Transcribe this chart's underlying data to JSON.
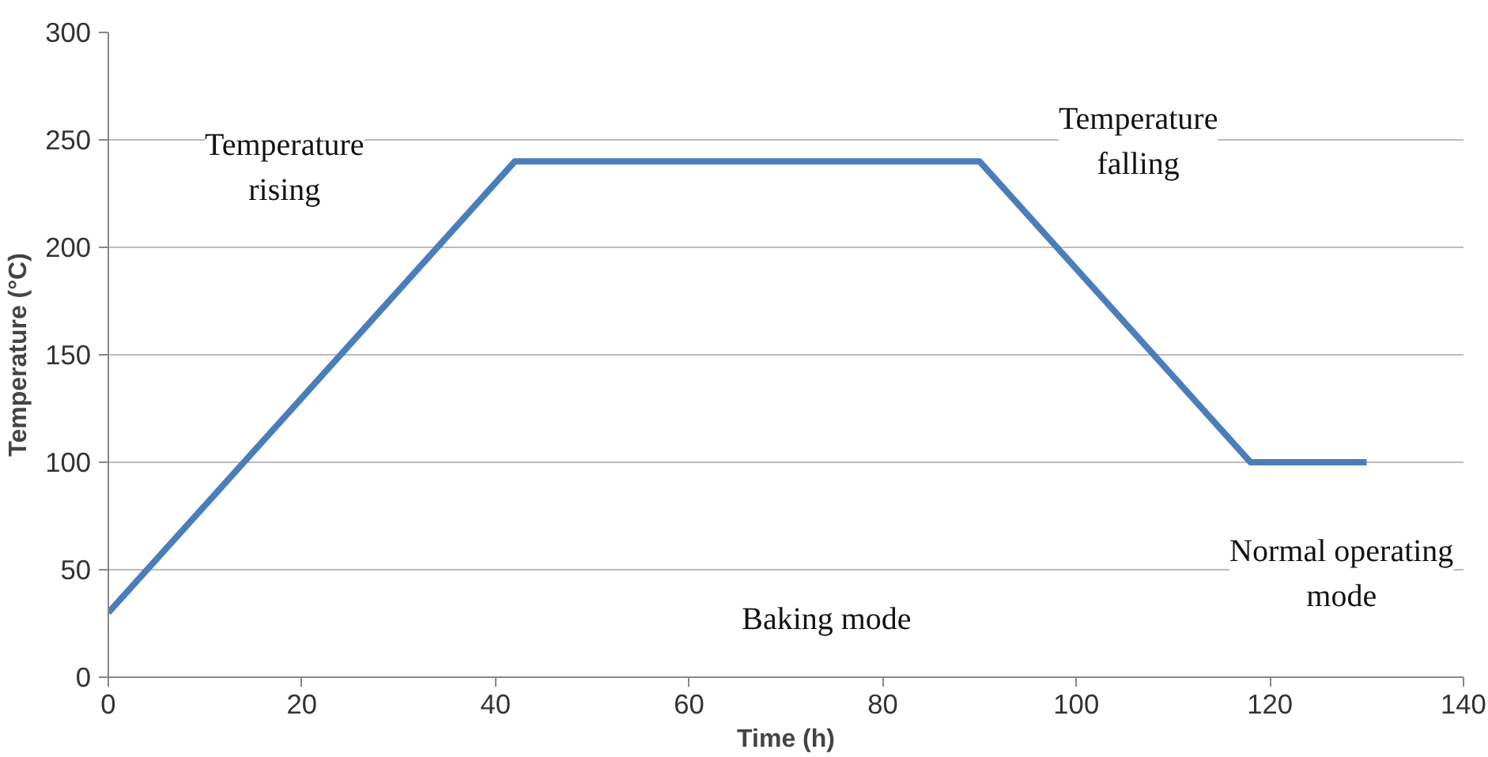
{
  "chart_data": {
    "type": "line",
    "xlabel": "Time (h)",
    "ylabel": "Temperature (°C)",
    "x": [
      0,
      42,
      90,
      118,
      130
    ],
    "series": [
      {
        "color": "#4a7ebb",
        "values": [
          30,
          240,
          240,
          100,
          100
        ]
      }
    ],
    "xlim": [
      0,
      140
    ],
    "ylim": [
      0,
      300
    ],
    "xticks": [
      0,
      20,
      40,
      60,
      80,
      100,
      120,
      140
    ],
    "yticks": [
      0,
      50,
      100,
      150,
      200,
      250,
      300
    ],
    "grid": "y",
    "marker": "none",
    "line_style": "solid",
    "annotations": [
      "Temperature\nrising",
      "Temperature\nfalling",
      "Baking mode",
      "Normal operating\nmode"
    ]
  }
}
